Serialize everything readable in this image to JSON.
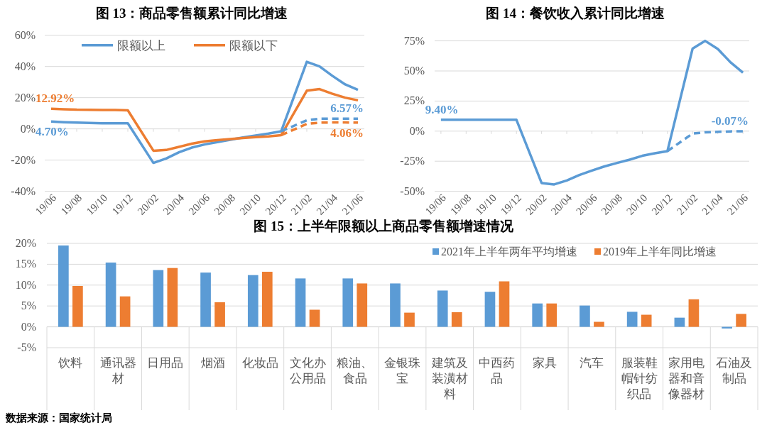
{
  "chart_data": [
    {
      "type": "line",
      "title": "图 13：商品零售额累计同比增速",
      "xlim": [
        "2019-05-16",
        "2021-06-16"
      ],
      "ylim": [
        -40,
        60
      ],
      "yticks": [
        {
          "value": -40,
          "label": "-40%"
        },
        {
          "value": -20,
          "label": "-20%"
        },
        {
          "value": 0,
          "label": "0%"
        },
        {
          "value": 20,
          "label": "20%"
        },
        {
          "value": 40,
          "label": "40%"
        },
        {
          "value": 60,
          "label": "60%"
        }
      ],
      "xticks": [
        {
          "value": "2019-06",
          "label": "19/06"
        },
        {
          "value": "2019-08",
          "label": "19/08"
        },
        {
          "value": "2019-10",
          "label": "19/10"
        },
        {
          "value": "2019-12",
          "label": "19/12"
        },
        {
          "value": "2020-02",
          "label": "20/02"
        },
        {
          "value": "2020-04",
          "label": "20/04"
        },
        {
          "value": "2020-06",
          "label": "20/06"
        },
        {
          "value": "2020-08",
          "label": "20/08"
        },
        {
          "value": "2020-10",
          "label": "20/10"
        },
        {
          "value": "2020-12",
          "label": "20/12"
        },
        {
          "value": "2021-02",
          "label": "21/02"
        },
        {
          "value": "2021-04",
          "label": "21/04"
        },
        {
          "value": "2021-06",
          "label": "21/06"
        }
      ],
      "x": [
        "2019-06",
        "2019-07",
        "2019-08",
        "2019-09",
        "2019-10",
        "2019-11",
        "2019-12",
        "2020-02",
        "2020-03",
        "2020-04",
        "2020-05",
        "2020-06",
        "2020-07",
        "2020-08",
        "2020-09",
        "2020-10",
        "2020-11",
        "2020-12",
        "2021-02",
        "2021-03",
        "2021-04",
        "2021-05",
        "2021-06"
      ],
      "series": [
        {
          "name": "限额以上",
          "color": "#5b9bd5",
          "values": [
            4.7,
            4.3,
            4.0,
            3.8,
            3.6,
            3.6,
            3.6,
            -21.8,
            -19,
            -15,
            -12,
            -10,
            -8.5,
            -7,
            -5.5,
            -4.2,
            -3,
            -1.5,
            43,
            40,
            34,
            28.5,
            25
          ]
        },
        {
          "name": "限额以下",
          "color": "#ed7d31",
          "values": [
            12.92,
            12.6,
            12.3,
            12.2,
            12.1,
            12.1,
            11.9,
            -14,
            -13.5,
            -11.5,
            -9.5,
            -8,
            -7.2,
            -6.5,
            -5.8,
            -5.3,
            -4.8,
            -4,
            24.5,
            25.5,
            22.5,
            20,
            18.3
          ]
        },
        {
          "color": "#5b9bd5",
          "line_style": "dashed",
          "x": [
            "2020-12",
            "2021-02",
            "2021-03",
            "2021-04",
            "2021-05",
            "2021-06"
          ],
          "values": [
            -1.5,
            5.5,
            6.5,
            6.6,
            6.6,
            6.57
          ]
        },
        {
          "color": "#ed7d31",
          "line_style": "dashed",
          "x": [
            "2020-12",
            "2021-02",
            "2021-03",
            "2021-04",
            "2021-05",
            "2021-06"
          ],
          "values": [
            -4,
            3.2,
            4.0,
            4.1,
            4.1,
            4.06
          ]
        }
      ],
      "annotations": [
        {
          "text": "12.92%",
          "x": "2019-06",
          "y": 12.92
        },
        {
          "text": "4.70%",
          "x": "2019-06",
          "y": 4.7
        },
        {
          "text": "6.57%",
          "x": "2021-06",
          "y": 6.57
        },
        {
          "text": "4.06%",
          "x": "2021-06",
          "y": 4.06
        }
      ],
      "grid": "y",
      "legend": "top",
      "marker": "none"
    },
    {
      "type": "line",
      "title": "图 14：餐饮收入累计同比增速",
      "xlim": [
        "2019-05-16",
        "2021-06-16"
      ],
      "ylim": [
        -50,
        75
      ],
      "yticks": [
        {
          "value": -50,
          "label": "-50%"
        },
        {
          "value": -25,
          "label": "-25%"
        },
        {
          "value": 0,
          "label": "0%"
        },
        {
          "value": 25,
          "label": "25%"
        },
        {
          "value": 50,
          "label": "50%"
        },
        {
          "value": 75,
          "label": "75%"
        }
      ],
      "xticks": [
        {
          "value": "2019-06",
          "label": "19/06"
        },
        {
          "value": "2019-08",
          "label": "19/08"
        },
        {
          "value": "2019-10",
          "label": "19/10"
        },
        {
          "value": "2019-12",
          "label": "19/12"
        },
        {
          "value": "2020-02",
          "label": "20/02"
        },
        {
          "value": "2020-04",
          "label": "20/04"
        },
        {
          "value": "2020-06",
          "label": "20/06"
        },
        {
          "value": "2020-08",
          "label": "20/08"
        },
        {
          "value": "2020-10",
          "label": "20/10"
        },
        {
          "value": "2020-12",
          "label": "20/12"
        },
        {
          "value": "2021-02",
          "label": "21/02"
        },
        {
          "value": "2021-04",
          "label": "21/04"
        },
        {
          "value": "2021-06",
          "label": "21/06"
        }
      ],
      "x": [
        "2019-06",
        "2019-07",
        "2019-08",
        "2019-09",
        "2019-10",
        "2019-11",
        "2019-12",
        "2020-02",
        "2020-03",
        "2020-04",
        "2020-05",
        "2020-06",
        "2020-07",
        "2020-08",
        "2020-09",
        "2020-10",
        "2020-11",
        "2020-12",
        "2021-02",
        "2021-03",
        "2021-04",
        "2021-05",
        "2021-06"
      ],
      "series": [
        {
          "color": "#5b9bd5",
          "values": [
            9.4,
            9.4,
            9.4,
            9.4,
            9.4,
            9.4,
            9.4,
            -43.1,
            -44.3,
            -41,
            -36.5,
            -32.8,
            -29.3,
            -26.4,
            -23.7,
            -20.5,
            -18.4,
            -16.6,
            68.6,
            75,
            68.3,
            57.3,
            48.6
          ]
        },
        {
          "color": "#5b9bd5",
          "line_style": "dashed",
          "x": [
            "2020-12",
            "2021-02",
            "2021-03",
            "2021-04",
            "2021-05",
            "2021-06"
          ],
          "values": [
            -16.6,
            -2,
            -1,
            -0.6,
            -0.2,
            -0.07
          ]
        }
      ],
      "annotations": [
        {
          "text": "9.40%",
          "x": "2019-06",
          "y": 9.4
        },
        {
          "text": "-0.07%",
          "x": "2021-06",
          "y": -0.07
        }
      ],
      "grid": "y",
      "marker": "none"
    },
    {
      "type": "bar",
      "title": "图 15：上半年限额以上商品零售额增速情况",
      "ylim": [
        -5,
        20
      ],
      "yticks": [
        {
          "value": -5,
          "label": "-5%"
        },
        {
          "value": 0,
          "label": "0%"
        },
        {
          "value": 5,
          "label": "5%"
        },
        {
          "value": 10,
          "label": "10%"
        },
        {
          "value": 15,
          "label": "15%"
        },
        {
          "value": 20,
          "label": "20%"
        }
      ],
      "categories": [
        "饮料",
        "通讯器材",
        "日用品",
        "烟酒",
        "化妆品",
        "文化办公用品",
        "粮油、食品",
        "金银珠宝",
        "建筑及装潢材料",
        "中西药品",
        "家具",
        "汽车",
        "服装鞋帽针纺织品",
        "家用电器和音像器材",
        "石油及制品"
      ],
      "series": [
        {
          "name": "2021年上半年两年平均增速",
          "color": "#5b9bd5",
          "values": [
            19.5,
            15.4,
            13.6,
            13.0,
            12.4,
            11.6,
            11.6,
            10.4,
            8.7,
            8.4,
            5.6,
            5.1,
            3.6,
            2.2,
            -0.4
          ]
        },
        {
          "name": "2019年上半年同比增速",
          "color": "#ed7d31",
          "values": [
            9.8,
            7.3,
            14.1,
            5.9,
            13.2,
            4.1,
            10.4,
            3.4,
            3.5,
            10.9,
            5.6,
            1.2,
            2.9,
            6.6,
            3.1
          ]
        }
      ],
      "annotations": [
        "数据来源：国家统计局"
      ],
      "grid": "y",
      "legend": "top right"
    }
  ]
}
